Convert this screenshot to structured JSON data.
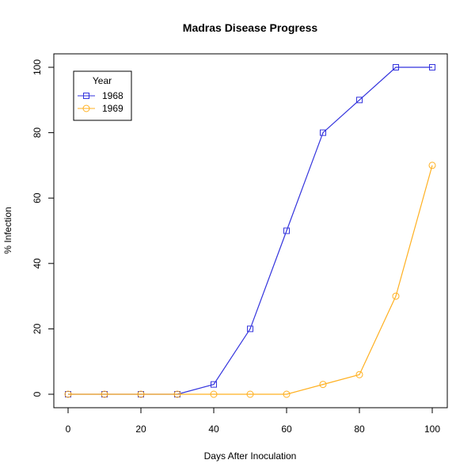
{
  "chart_data": {
    "type": "line",
    "title": "Madras Disease Progress",
    "xlabel": "Days After Inoculation",
    "ylabel": "% Infection",
    "x": [
      0,
      10,
      20,
      30,
      40,
      50,
      60,
      70,
      80,
      90,
      100
    ],
    "xlim": [
      0,
      100
    ],
    "ylim": [
      0,
      100
    ],
    "xticks": [
      "0",
      "20",
      "40",
      "60",
      "80",
      "100"
    ],
    "yticks": [
      "0",
      "20",
      "40",
      "60",
      "80",
      "100"
    ],
    "grid": false,
    "legend": {
      "title": "Year",
      "placement": "top-left"
    },
    "series": [
      {
        "name": "1968",
        "color": "#3333dd",
        "marker": "square",
        "values": [
          0,
          0,
          0,
          0,
          3,
          20,
          50,
          80,
          90,
          100,
          100
        ]
      },
      {
        "name": "1969",
        "color": "#ffb020",
        "marker": "circle",
        "values": [
          0,
          0,
          0,
          0,
          0,
          0,
          0,
          3,
          6,
          30,
          70
        ]
      }
    ]
  }
}
